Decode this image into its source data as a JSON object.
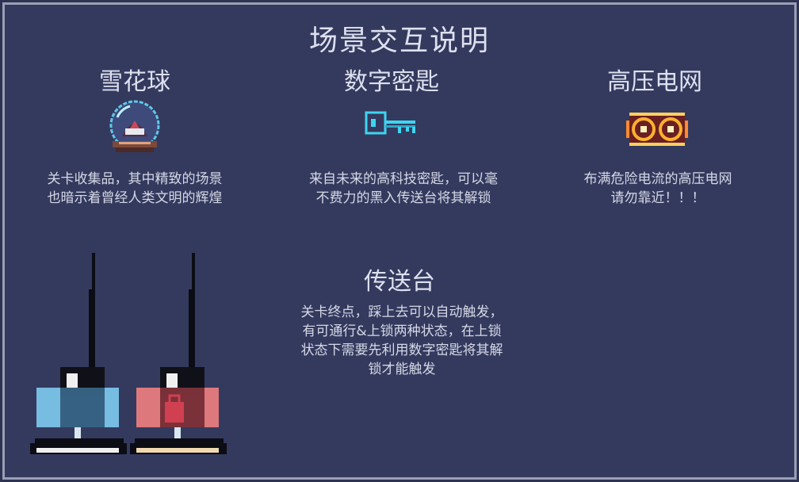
{
  "page": {
    "title": "场景交互说明"
  },
  "items": {
    "snowglobe": {
      "name": "雪花球",
      "desc": [
        "关卡收集品，其中精致的场景",
        "也暗示着曾经人类文明的辉煌"
      ],
      "icon": "snowglobe-icon"
    },
    "key": {
      "name": "数字密匙",
      "desc": [
        "来自未来的高科技密匙，可以毫",
        "不费力的黑入传送台将其解锁"
      ],
      "icon": "digital-key-icon"
    },
    "grid": {
      "name": "高压电网",
      "desc": [
        "布满危险电流的高压电网",
        "请勿靠近！！！"
      ],
      "icon": "electric-grid-icon"
    },
    "teleporter": {
      "name": "传送台",
      "desc": [
        "关卡终点，踩上去可以自动触发，",
        "有可通行&上锁两种状态，在上锁",
        "状态下需要先利用数字密匙将其解",
        "锁才能触发"
      ],
      "states": [
        "unlocked",
        "locked"
      ],
      "icon": "teleporter-icon"
    }
  },
  "colors": {
    "background": "#343a5e",
    "border": "#9a9fb6",
    "key_cyan": "#3fd4f0",
    "unlocked_blue": "#7ecbf0",
    "locked_red": "#f08080"
  }
}
